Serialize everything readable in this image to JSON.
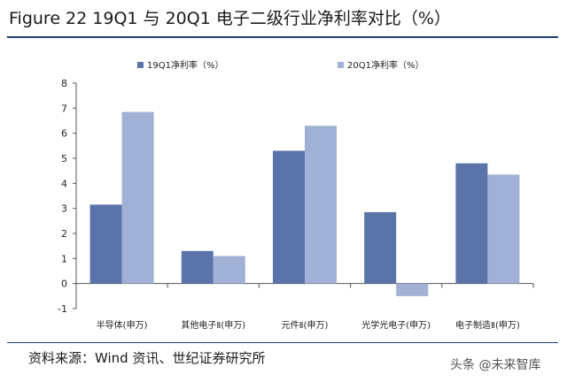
{
  "figure": {
    "title": "Figure 22 19Q1 与 20Q1 电子二级行业净利率对比（%）"
  },
  "source": "资料来源：Wind 资讯、世纪证券研究所",
  "watermark": "头条 @未来智库",
  "colors": {
    "series_1": "#5a73a9",
    "series_2": "#a1b0d5",
    "axis": "#555555",
    "rule": "#1f3f7a"
  },
  "chart_data": {
    "type": "bar",
    "title": "",
    "xlabel": "",
    "ylabel": "",
    "categories": [
      "半导体(申万)",
      "其他电子Ⅱ(申万)",
      "元件Ⅱ(申万)",
      "光学光电子(申万)",
      "电子制造Ⅱ(申万)"
    ],
    "series": [
      {
        "name": "19Q1净利率（%）",
        "values": [
          3.15,
          1.3,
          5.3,
          2.85,
          4.8
        ]
      },
      {
        "name": "20Q1净利率（%）",
        "values": [
          6.85,
          1.1,
          6.3,
          -0.5,
          4.35
        ]
      }
    ],
    "ylim": [
      -1,
      8
    ],
    "yticks": [
      -1,
      0,
      1,
      2,
      3,
      4,
      5,
      6,
      7,
      8
    ],
    "grid": false,
    "legend_position": "top"
  }
}
